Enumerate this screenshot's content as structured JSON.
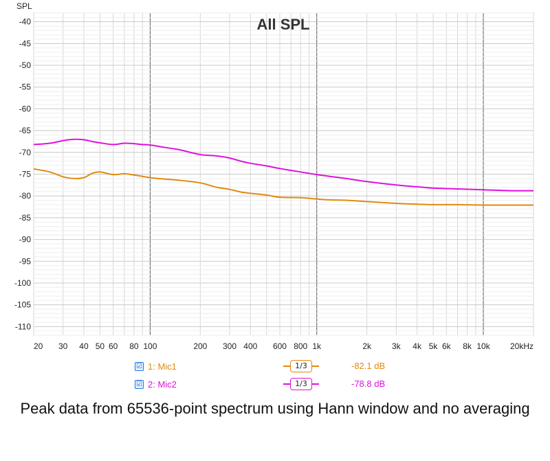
{
  "chart_data": {
    "type": "line",
    "title": "All SPL",
    "ylabel": "SPL",
    "xlabel": "",
    "x_scale": "log",
    "xlim": [
      20,
      20000
    ],
    "ylim": [
      -112,
      -38
    ],
    "x_ticks": [
      {
        "value": 20,
        "label": "20"
      },
      {
        "value": 30,
        "label": "30"
      },
      {
        "value": 40,
        "label": "40"
      },
      {
        "value": 50,
        "label": "50"
      },
      {
        "value": 60,
        "label": "60"
      },
      {
        "value": 80,
        "label": "80"
      },
      {
        "value": 100,
        "label": "100"
      },
      {
        "value": 200,
        "label": "200"
      },
      {
        "value": 300,
        "label": "300"
      },
      {
        "value": 400,
        "label": "400"
      },
      {
        "value": 600,
        "label": "600"
      },
      {
        "value": 800,
        "label": "800"
      },
      {
        "value": 1000,
        "label": "1k"
      },
      {
        "value": 2000,
        "label": "2k"
      },
      {
        "value": 3000,
        "label": "3k"
      },
      {
        "value": 4000,
        "label": "4k"
      },
      {
        "value": 5000,
        "label": "5k"
      },
      {
        "value": 6000,
        "label": "6k"
      },
      {
        "value": 8000,
        "label": "8k"
      },
      {
        "value": 10000,
        "label": "10k"
      },
      {
        "value": 20000,
        "label": "20kHz"
      }
    ],
    "y_ticks": [
      -40,
      -45,
      -50,
      -55,
      -60,
      -65,
      -70,
      -75,
      -80,
      -85,
      -90,
      -95,
      -100,
      -105,
      -110
    ],
    "grid": true,
    "series": [
      {
        "name": "1: Mic1",
        "color": "#e0890e",
        "x": [
          20,
          25,
          30,
          35,
          40,
          45,
          50,
          60,
          70,
          80,
          90,
          100,
          120,
          150,
          200,
          250,
          300,
          350,
          400,
          500,
          600,
          800,
          1000,
          1200,
          1500,
          2000,
          3000,
          4000,
          5000,
          7000,
          10000,
          15000,
          20000
        ],
        "y": [
          -73.8,
          -74.5,
          -75.6,
          -76.0,
          -75.8,
          -74.8,
          -74.5,
          -75.1,
          -74.9,
          -75.2,
          -75.5,
          -75.8,
          -76.1,
          -76.4,
          -77.0,
          -78.0,
          -78.5,
          -79.1,
          -79.4,
          -79.8,
          -80.3,
          -80.4,
          -80.7,
          -80.9,
          -81.0,
          -81.3,
          -81.7,
          -81.9,
          -82.0,
          -82.0,
          -82.1,
          -82.1,
          -82.1
        ]
      },
      {
        "name": "2: Mic2",
        "color": "#e010e0",
        "x": [
          20,
          25,
          30,
          35,
          40,
          45,
          50,
          60,
          70,
          80,
          90,
          100,
          120,
          150,
          200,
          250,
          300,
          350,
          400,
          500,
          600,
          800,
          1000,
          1200,
          1500,
          2000,
          3000,
          4000,
          5000,
          7000,
          10000,
          15000,
          20000
        ],
        "y": [
          -68.2,
          -67.9,
          -67.3,
          -67.0,
          -67.1,
          -67.5,
          -67.8,
          -68.2,
          -67.9,
          -68.0,
          -68.2,
          -68.3,
          -68.8,
          -69.4,
          -70.5,
          -70.8,
          -71.3,
          -72.0,
          -72.5,
          -73.1,
          -73.7,
          -74.5,
          -75.1,
          -75.5,
          -76.0,
          -76.7,
          -77.5,
          -77.9,
          -78.2,
          -78.4,
          -78.6,
          -78.8,
          -78.8
        ]
      }
    ]
  },
  "legend": [
    {
      "checkbox": "☑",
      "label": "1: Mic1",
      "smoothing": "1/3",
      "readout": "-82.1 dB",
      "color": "#e0890e"
    },
    {
      "checkbox": "☑",
      "label": "2: Mic2",
      "smoothing": "1/3",
      "readout": "-78.8 dB",
      "color": "#e010e0"
    }
  ],
  "caption": "Peak data from 65536-point spectrum using Hann window and no averaging"
}
